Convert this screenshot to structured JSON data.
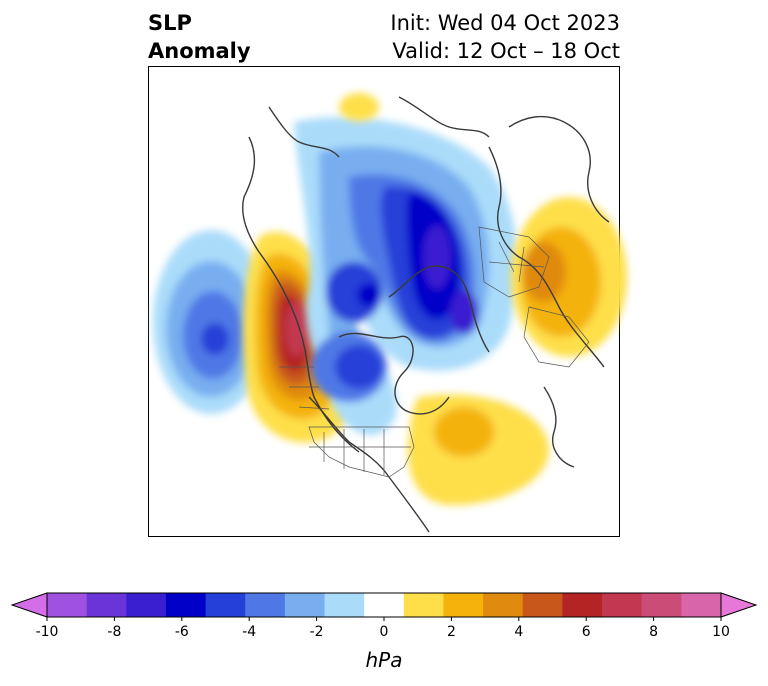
{
  "header": {
    "title_line1": "SLP",
    "title_line2": "Anomaly",
    "init_text": "Init: Wed 04 Oct 2023",
    "valid_text": "Valid: 12 Oct – 18 Oct"
  },
  "colorbar": {
    "units": "hPa",
    "min": -10,
    "max": 10,
    "tick_labels": [
      "-10",
      "-8",
      "-6",
      "-4",
      "-2",
      "0",
      "2",
      "4",
      "6",
      "8",
      "10"
    ],
    "colors": [
      "#d36ee8",
      "#9f52e0",
      "#6a35d8",
      "#3a1fd0",
      "#0000c8",
      "#2540d8",
      "#4f78e6",
      "#78aef0",
      "#aadcfa",
      "#ffffff",
      "#fedf4a",
      "#f4b20b",
      "#e08a10",
      "#c8581a",
      "#b42424",
      "#c23850",
      "#cc4c78",
      "#d865aa",
      "#e878d8"
    ]
  }
}
